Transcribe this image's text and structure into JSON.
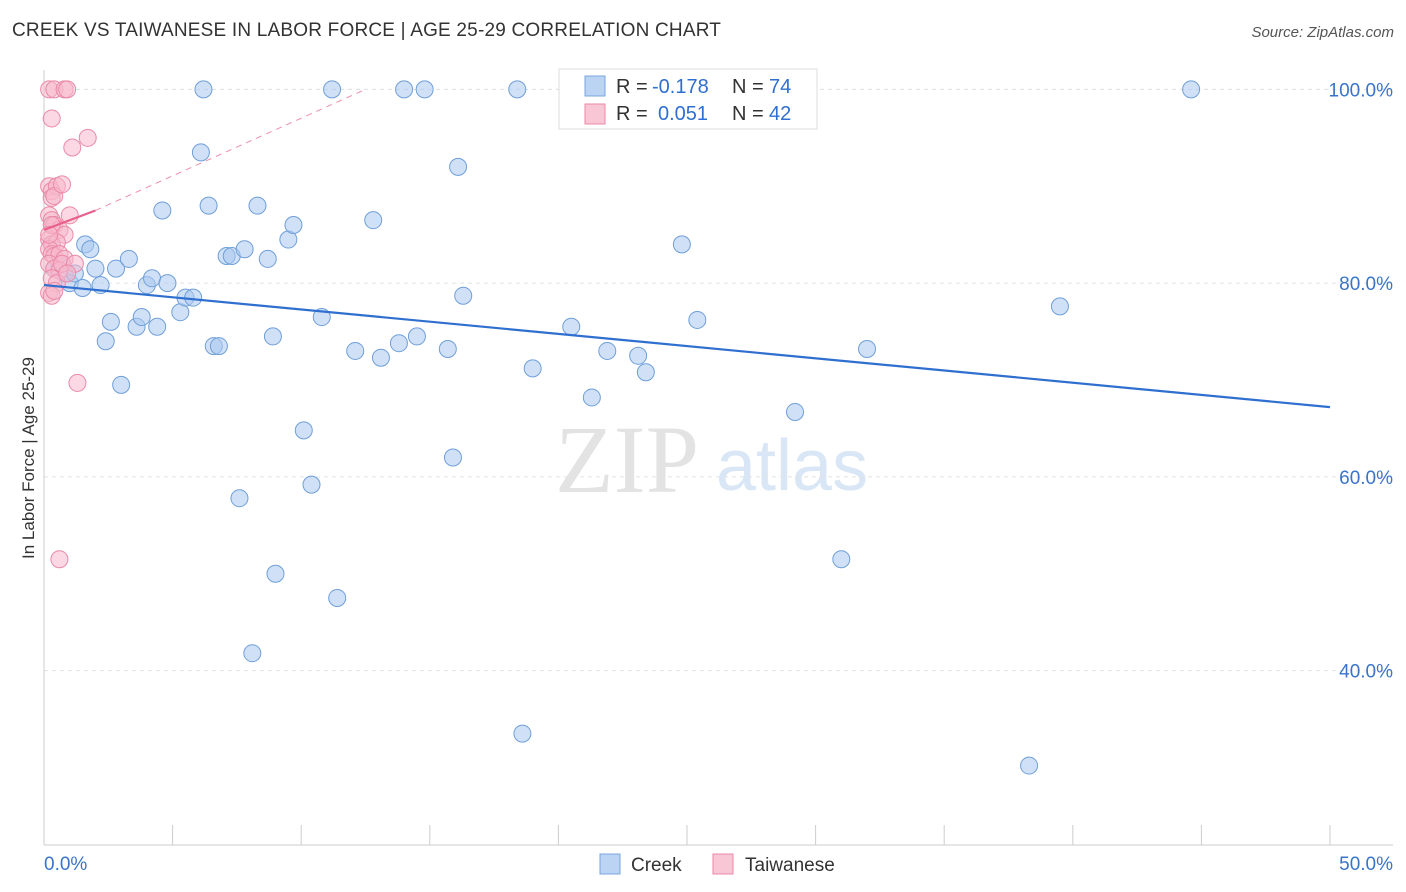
{
  "chart_data": {
    "type": "scatter",
    "title": "CREEK VS TAIWANESE IN LABOR FORCE | AGE 25-29 CORRELATION CHART",
    "source": "Source: ZipAtlas.com",
    "xlabel": "",
    "ylabel": "In Labor Force | Age 25-29",
    "xlim": [
      0,
      50
    ],
    "ylim": [
      22,
      102
    ],
    "x_tick_labels": {
      "min": "0.0%",
      "max": "50.0%"
    },
    "y_ticks": [
      {
        "value": 40,
        "label": "40.0%"
      },
      {
        "value": 60,
        "label": "60.0%"
      },
      {
        "value": 80,
        "label": "80.0%"
      },
      {
        "value": 100,
        "label": "100.0%"
      }
    ],
    "watermark": {
      "zip": "ZIP",
      "atlas": "atlas"
    },
    "legend": [
      {
        "r_label": "R =",
        "r_value": "-0.178",
        "n_label": "N =",
        "n_value": "74"
      },
      {
        "r_label": "R =",
        "r_value": "0.051",
        "n_label": "N =",
        "n_value": "42"
      }
    ],
    "series": [
      {
        "name": "Creek",
        "color": "#a9c8f0",
        "stroke": "#6f9fd8",
        "trend_color": "#2f6fcf",
        "trend": {
          "x0": 0.0,
          "y0": 79.8,
          "x1": 50.0,
          "y1": 67.2
        },
        "points": [
          [
            0.3,
            84
          ],
          [
            0.6,
            82
          ],
          [
            0.8,
            81
          ],
          [
            1.0,
            80
          ],
          [
            1.2,
            81
          ],
          [
            1.5,
            79.5
          ],
          [
            1.6,
            84
          ],
          [
            1.8,
            83.5
          ],
          [
            2.0,
            81.5
          ],
          [
            2.2,
            79.8
          ],
          [
            2.4,
            74
          ],
          [
            2.6,
            76
          ],
          [
            2.8,
            81.5
          ],
          [
            3.0,
            69.5
          ],
          [
            3.3,
            82.5
          ],
          [
            3.6,
            75.5
          ],
          [
            3.8,
            76.5
          ],
          [
            4.0,
            79.8
          ],
          [
            4.2,
            80.5
          ],
          [
            4.4,
            75.5
          ],
          [
            4.6,
            87.5
          ],
          [
            4.8,
            80
          ],
          [
            5.3,
            77
          ],
          [
            5.5,
            78.5
          ],
          [
            5.8,
            78.5
          ],
          [
            6.1,
            93.5
          ],
          [
            6.2,
            100
          ],
          [
            6.4,
            88
          ],
          [
            6.6,
            73.5
          ],
          [
            6.8,
            73.5
          ],
          [
            7.1,
            82.8
          ],
          [
            7.3,
            82.8
          ],
          [
            7.6,
            57.8
          ],
          [
            7.8,
            83.5
          ],
          [
            8.1,
            41.8
          ],
          [
            8.3,
            88
          ],
          [
            8.7,
            82.5
          ],
          [
            8.9,
            74.5
          ],
          [
            9.0,
            50
          ],
          [
            9.5,
            84.5
          ],
          [
            9.7,
            86
          ],
          [
            10.1,
            64.8
          ],
          [
            10.4,
            59.2
          ],
          [
            10.8,
            76.5
          ],
          [
            11.2,
            100
          ],
          [
            11.4,
            47.5
          ],
          [
            12.1,
            73
          ],
          [
            12.8,
            86.5
          ],
          [
            13.1,
            72.3
          ],
          [
            13.8,
            73.8
          ],
          [
            14.0,
            100
          ],
          [
            14.5,
            74.5
          ],
          [
            14.8,
            100
          ],
          [
            15.7,
            73.2
          ],
          [
            15.9,
            62
          ],
          [
            16.1,
            92
          ],
          [
            16.3,
            78.7
          ],
          [
            18.4,
            100
          ],
          [
            18.6,
            33.5
          ],
          [
            19.0,
            71.2
          ],
          [
            20.5,
            75.5
          ],
          [
            21.3,
            68.2
          ],
          [
            21.9,
            73
          ],
          [
            23.1,
            72.5
          ],
          [
            23.4,
            70.8
          ],
          [
            24.8,
            84
          ],
          [
            25.4,
            76.2
          ],
          [
            29.2,
            66.7
          ],
          [
            31.0,
            51.5
          ],
          [
            32.0,
            73.2
          ],
          [
            38.3,
            30.2
          ],
          [
            39.5,
            77.6
          ],
          [
            44.6,
            100
          ],
          [
            0.4,
            81.5
          ]
        ]
      },
      {
        "name": "Taiwanese",
        "color": "#f7b8cc",
        "stroke": "#e98aa8",
        "trend_color": "#e8608c",
        "trend": {
          "x0": 0.0,
          "y0": 85.5,
          "x1": 2.0,
          "y1": 87.5
        },
        "trend_ext": {
          "x0": 2.0,
          "y0": 87.5,
          "x1": 12.5,
          "y1": 100.0
        },
        "points": [
          [
            0.2,
            100
          ],
          [
            0.4,
            100
          ],
          [
            0.8,
            100
          ],
          [
            0.9,
            100
          ],
          [
            0.3,
            97
          ],
          [
            1.1,
            94
          ],
          [
            1.7,
            95
          ],
          [
            0.2,
            90
          ],
          [
            0.3,
            89.5
          ],
          [
            0.5,
            90
          ],
          [
            0.3,
            88.8
          ],
          [
            0.4,
            89
          ],
          [
            0.7,
            90.2
          ],
          [
            0.2,
            87
          ],
          [
            0.3,
            86.5
          ],
          [
            0.4,
            86
          ],
          [
            0.6,
            85.5
          ],
          [
            0.8,
            85
          ],
          [
            1.0,
            87
          ],
          [
            0.2,
            84.5
          ],
          [
            0.3,
            84
          ],
          [
            0.5,
            84.2
          ],
          [
            0.2,
            83.5
          ],
          [
            0.3,
            83
          ],
          [
            0.4,
            82.8
          ],
          [
            0.6,
            83
          ],
          [
            0.8,
            82.5
          ],
          [
            0.2,
            82
          ],
          [
            0.4,
            81.5
          ],
          [
            0.6,
            81.3
          ],
          [
            0.3,
            80.5
          ],
          [
            0.5,
            80
          ],
          [
            0.2,
            79
          ],
          [
            0.3,
            78.7
          ],
          [
            0.4,
            79.2
          ],
          [
            0.7,
            82
          ],
          [
            1.2,
            82
          ],
          [
            0.9,
            81
          ],
          [
            1.3,
            69.7
          ],
          [
            0.6,
            51.5
          ],
          [
            0.3,
            86
          ],
          [
            0.2,
            85
          ]
        ]
      }
    ]
  }
}
